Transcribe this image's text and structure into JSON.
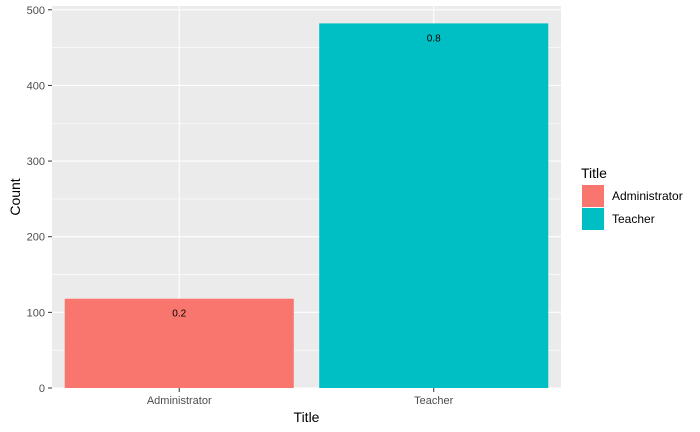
{
  "chart_data": {
    "type": "bar",
    "categories": [
      "Administrator",
      "Teacher"
    ],
    "values": [
      118,
      482
    ],
    "data_labels": [
      "0.2",
      "0.8"
    ],
    "colors": [
      "#F8766D",
      "#00BFC4"
    ],
    "xlabel": "Title",
    "ylabel": "Count",
    "ylim": [
      0,
      505
    ],
    "yticks": [
      0,
      100,
      200,
      300,
      400,
      500
    ],
    "grid": true,
    "panel_background": "#EBEBEB",
    "legend": {
      "title": "Title",
      "placement": "right",
      "entries": [
        "Administrator",
        "Teacher"
      ]
    }
  }
}
